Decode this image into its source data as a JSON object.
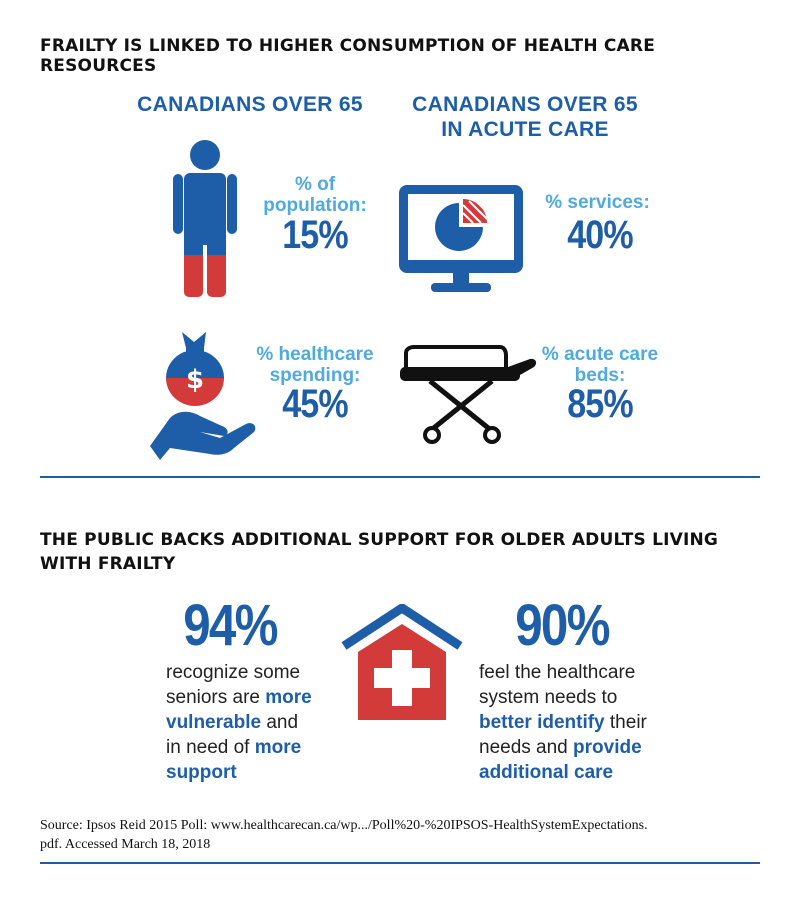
{
  "section1": {
    "heading": "FRAILTY IS LINKED TO HIGHER CONSUMPTION OF HEALTH CARE RESOURCES",
    "left_title": "CANADIANS OVER 65",
    "right_title_line1": "CANADIANS OVER 65",
    "right_title_line2": "IN ACUTE CARE",
    "stats": {
      "population": {
        "label_line1": "% of",
        "label_line2": "population:",
        "value": "15%",
        "icon": "person-icon"
      },
      "services": {
        "label_line1": "% services:",
        "value": "40%",
        "icon": "monitor-pie-chart-icon"
      },
      "spending": {
        "label_line1": "% healthcare",
        "label_line2": "spending:",
        "value": "45%",
        "icon": "money-bag-hand-icon"
      },
      "beds": {
        "label_line1": "% acute care",
        "label_line2": "beds:",
        "value": "85%",
        "icon": "stretcher-icon"
      }
    }
  },
  "section2": {
    "heading_line1": "THE PUBLIC BACKS ADDITIONAL SUPPORT FOR OLDER ADULTS LIVING",
    "heading_line2": "WITH FRAILTY",
    "left": {
      "pct": "94%",
      "t1": "recognize some",
      "t2a": "seniors are ",
      "t2b": "more",
      "t3a": "vulnerable",
      "t3b": " and",
      "t4a": "in need of ",
      "t4b": "more",
      "t5a": "support"
    },
    "right": {
      "pct": "90%",
      "t1": "feel the healthcare",
      "t2": "system needs to",
      "t3a": "better identify",
      "t3b": " their",
      "t4a": "needs and ",
      "t4b": "provide",
      "t5a": "additional care"
    },
    "icon": "hospital-house-icon"
  },
  "source": {
    "line1": "Source: Ipsos Reid 2015 Poll: www.healthcarecan.ca/wp.../Poll%20-%20IPSOS-HealthSystemExpectations.",
    "line2": "pdf. Accessed March 18, 2018"
  },
  "colors": {
    "dark_blue": "#1e5ea8",
    "light_blue": "#4eaadf",
    "red": "#d33a3a",
    "black": "#111111"
  }
}
